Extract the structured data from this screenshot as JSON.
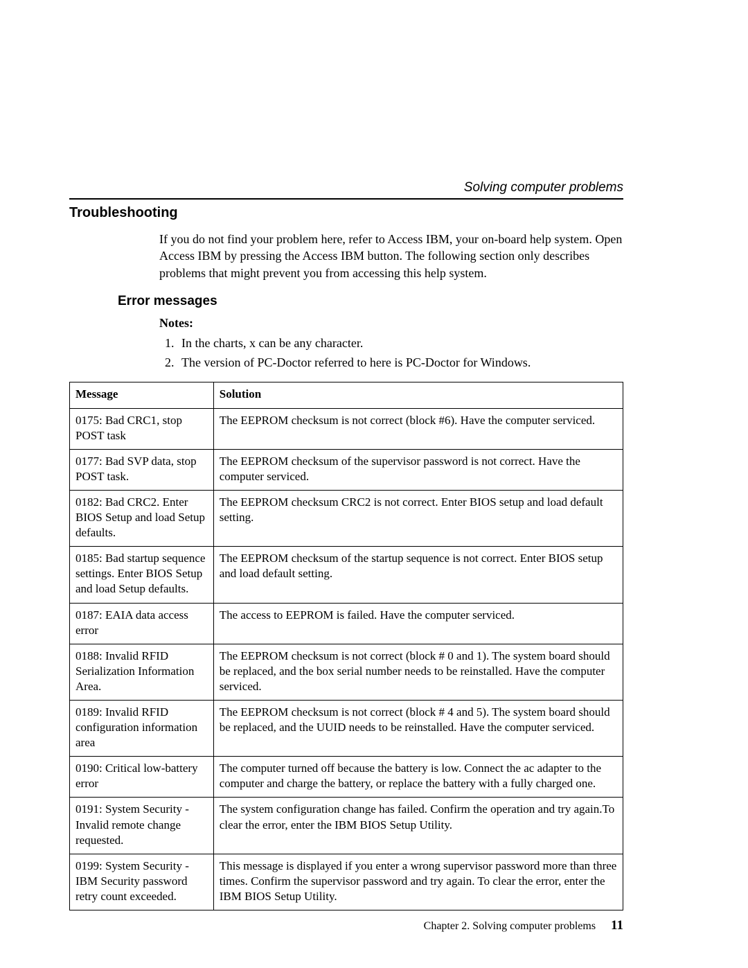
{
  "running_head": "Solving computer problems",
  "section_title": "Troubleshooting",
  "intro": "If you do not find your problem here, refer to Access IBM, your on-board help system. Open Access IBM by pressing the Access IBM button. The following section only describes problems that might prevent you from accessing this help system.",
  "subsection_title": "Error messages",
  "notes_label": "Notes:",
  "notes": [
    "In the charts, x can be any character.",
    "The version of PC-Doctor referred to here is PC-Doctor for Windows."
  ],
  "table": {
    "headers": {
      "message": "Message",
      "solution": "Solution"
    },
    "rows": [
      {
        "message": "0175: Bad CRC1, stop POST task",
        "solution": "The EEPROM checksum is not correct (block #6). Have the computer serviced."
      },
      {
        "message": "0177: Bad SVP data, stop POST task.",
        "solution": "The EEPROM checksum of the supervisor password is not correct. Have the computer serviced."
      },
      {
        "message": "0182: Bad CRC2. Enter BIOS Setup and load Setup defaults.",
        "solution": "The EEPROM checksum CRC2 is not correct. Enter BIOS setup and load default setting."
      },
      {
        "message": "0185: Bad startup sequence settings. Enter BIOS Setup and load Setup defaults.",
        "solution": "The EEPROM checksum of the startup sequence is not correct. Enter BIOS setup and load default setting."
      },
      {
        "message": "0187: EAIA data access error",
        "solution": "The access to EEPROM is failed. Have the computer serviced."
      },
      {
        "message": "0188: Invalid RFID Serialization Information Area.",
        "solution": "The EEPROM checksum is not correct (block # 0 and 1). The system board should be replaced, and the box serial number needs to be reinstalled. Have the computer serviced."
      },
      {
        "message": "0189: Invalid RFID configuration information area",
        "solution": "The EEPROM checksum is not correct (block # 4 and 5). The system board should be replaced, and the UUID needs to be reinstalled. Have the computer serviced."
      },
      {
        "message": "0190: Critical low-battery error",
        "solution": "The computer turned off because the battery is low. Connect the ac adapter to the computer and charge the battery, or replace the battery with a fully charged one."
      },
      {
        "message": "0191: System Security - Invalid remote change requested.",
        "solution": "The system configuration change has failed. Confirm the operation and try again.To clear the error, enter the IBM BIOS Setup Utility."
      },
      {
        "message": "0199: System Security - IBM Security password retry count exceeded.",
        "solution": "This message is displayed if you enter a wrong supervisor password more than three times. Confirm the supervisor password and try again. To clear the error, enter the IBM BIOS Setup Utility."
      }
    ]
  },
  "footer": {
    "chapter": "Chapter 2. Solving computer problems",
    "page": "11"
  }
}
